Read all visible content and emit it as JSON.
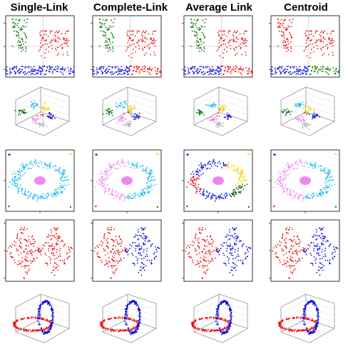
{
  "figure": {
    "methods": [
      "Single-Link",
      "Complete-Link",
      "Average Link",
      "Centroid"
    ],
    "colors": {
      "red": "#ee1111",
      "blue": "#1111dd",
      "green": "#117711",
      "gold": "#f5d000",
      "cyan": "#22bbee",
      "violet": "#ee88ee",
      "gray": "#aaaaaa",
      "darkgreen": "#006400"
    }
  },
  "chart_data": [
    {
      "type": "scatter",
      "row": 1,
      "dataset": "three groups: vertical strip (top-left), cloud (right), horizontal band (bottom)",
      "groups": [
        {
          "region": "top-left strip",
          "x_range": [
            0.1,
            0.32
          ],
          "y_range": [
            0.4,
            1.0
          ]
        },
        {
          "region": "right cloud",
          "x_range": [
            0.45,
            0.95
          ],
          "y_range": [
            0.35,
            0.6
          ]
        },
        {
          "region": "bottom band",
          "x_range": [
            0.0,
            1.0
          ],
          "y_range": [
            0.0,
            0.12
          ]
        }
      ],
      "assignments": {
        "Single-Link": [
          "green",
          "red",
          "blue"
        ],
        "Complete-Link": [
          "green",
          "red",
          "blue-left/red-right"
        ],
        "Average Link": [
          "green",
          "red",
          "blue-left/red-right"
        ],
        "Centroid": [
          "red",
          "red",
          "blue-left/green-right"
        ]
      }
    },
    {
      "type": "scatter",
      "row": 2,
      "dataset": "3D clusters",
      "clusters": [
        "green",
        "cyan",
        "gold",
        "red",
        "blue",
        "violet",
        "gray"
      ],
      "assignments": {
        "Single-Link": [
          "green",
          "cyan",
          "gold",
          "red",
          "blue",
          "violet",
          "gray"
        ],
        "Complete-Link": [
          "green",
          "cyan",
          "gold",
          "red",
          "blue",
          "violet",
          "gray"
        ],
        "Average Link": [
          "green",
          "cyan",
          "gold",
          "red",
          "blue",
          "violet",
          "gray"
        ],
        "Centroid": [
          "green",
          "cyan",
          "gold",
          "red",
          "blue",
          "violet",
          "gray"
        ]
      }
    },
    {
      "type": "scatter",
      "row": 3,
      "dataset": "ring around a central blob with four corner points",
      "assignments": {
        "Single-Link": {
          "ring": [
            "cyan"
          ],
          "center": "violet",
          "corners": [
            "blue",
            "gold",
            "red",
            "darkgreen"
          ]
        },
        "Complete-Link": {
          "ring": [
            "violet",
            "cyan"
          ],
          "center": "violet",
          "corners": [
            "blue",
            "gold",
            "red",
            "darkgreen"
          ]
        },
        "Average Link": {
          "ring": [
            "blue",
            "gold",
            "darkgreen",
            "red"
          ],
          "center": "violet",
          "corners": [
            "blue",
            "gold",
            "red",
            "darkgreen"
          ]
        },
        "Centroid": {
          "ring": [
            "violet",
            "cyan"
          ],
          "center": "violet",
          "corners": [
            "blue",
            "gold",
            "red",
            "darkgreen"
          ]
        }
      }
    },
    {
      "type": "scatter",
      "row": 4,
      "dataset": "two adjacent diamonds",
      "assignments": {
        "Single-Link": [
          "red",
          "red"
        ],
        "Complete-Link": [
          "red",
          "blue"
        ],
        "Average Link": [
          "red",
          "blue"
        ],
        "Centroid": [
          "red",
          "blue"
        ]
      }
    },
    {
      "type": "scatter",
      "row": 5,
      "dataset": "two interlocking 3D rings",
      "assignments": {
        "Single-Link": [
          "red",
          "blue"
        ],
        "Complete-Link": [
          "red",
          "blue"
        ],
        "Average Link": [
          "red",
          "blue"
        ],
        "Centroid": [
          "red",
          "blue"
        ]
      }
    }
  ]
}
